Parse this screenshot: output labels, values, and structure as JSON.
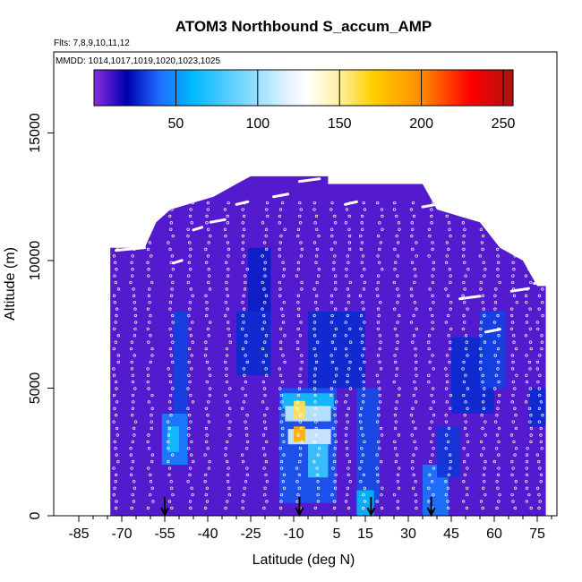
{
  "chart_data": {
    "type": "heatmap",
    "title": "ATOM3 Northbound S_accum_AMP",
    "subtitle_flights": "Flts: 7,8,9,10,11,12",
    "subtitle_dates": "MMDD: 1014,1017,1019,1020,1023,1025",
    "xlabel": "Latitude (deg N)",
    "ylabel": "Altitude (m)",
    "xlim": [
      -85,
      85
    ],
    "ylim": [
      0,
      17000
    ],
    "x_ticks": [
      -85,
      -70,
      -55,
      -40,
      -25,
      -10,
      5,
      15,
      30,
      45,
      60,
      75
    ],
    "x_tick_labels": [
      "-85",
      "-70",
      "-55",
      "-40",
      "-25",
      "-10",
      "5",
      "15",
      "30",
      "45",
      "60",
      "75"
    ],
    "y_ticks": [
      0,
      5000,
      10000,
      15000
    ],
    "y_tick_labels": [
      "0",
      "5000",
      "10000",
      "15000"
    ],
    "colorbar": {
      "range": [
        0,
        256
      ],
      "ticks": [
        50,
        100,
        150,
        200,
        250
      ],
      "tick_labels": [
        "50",
        "100",
        "150",
        "200",
        "250"
      ],
      "colors": [
        "#8a2be2",
        "#0000b0",
        "#1e6cff",
        "#00b8ff",
        "#e8f4ff",
        "#ffffff",
        "#fff0a0",
        "#ffd000",
        "#ff8c00",
        "#ff0000",
        "#b01010"
      ],
      "stops": [
        0,
        20,
        40,
        60,
        120,
        130,
        150,
        170,
        200,
        230,
        256
      ]
    },
    "background_value": 8,
    "domain_outline": [
      [
        -74,
        500
      ],
      [
        -74,
        10500
      ],
      [
        -62,
        10500
      ],
      [
        -58,
        11500
      ],
      [
        -53,
        12000
      ],
      [
        -38,
        12500
      ],
      [
        -30,
        13000
      ],
      [
        -25,
        13300
      ],
      [
        2,
        13300
      ],
      [
        2,
        13000
      ],
      [
        35,
        13000
      ],
      [
        40,
        12000
      ],
      [
        55,
        11500
      ],
      [
        62,
        10500
      ],
      [
        70,
        10000
      ],
      [
        75,
        9000
      ],
      [
        78,
        9000
      ],
      [
        78,
        500
      ]
    ],
    "features": [
      {
        "lat": [
          -56,
          -47
        ],
        "alt": [
          2000,
          4000
        ],
        "value": 45
      },
      {
        "lat": [
          -54,
          -50
        ],
        "alt": [
          2500,
          3500
        ],
        "value": 65
      },
      {
        "lat": [
          -52,
          -47
        ],
        "alt": [
          4000,
          8000
        ],
        "value": 32
      },
      {
        "lat": [
          -30,
          -18
        ],
        "alt": [
          5500,
          8000
        ],
        "value": 28
      },
      {
        "lat": [
          -26,
          -18
        ],
        "alt": [
          8000,
          10500
        ],
        "value": 26
      },
      {
        "lat": [
          -15,
          5
        ],
        "alt": [
          500,
          5000
        ],
        "value": 36
      },
      {
        "lat": [
          -14,
          4
        ],
        "alt": [
          4200,
          4800
        ],
        "value": 65
      },
      {
        "lat": [
          -13,
          3
        ],
        "alt": [
          3700,
          4300
        ],
        "value": 110
      },
      {
        "lat": [
          -12,
          3
        ],
        "alt": [
          2800,
          3400
        ],
        "value": 115
      },
      {
        "lat": [
          -10,
          -6
        ],
        "alt": [
          3800,
          4500
        ],
        "value": 160
      },
      {
        "lat": [
          -10,
          -6
        ],
        "alt": [
          2900,
          3500
        ],
        "value": 185
      },
      {
        "lat": [
          -5,
          2
        ],
        "alt": [
          1500,
          2800
        ],
        "value": 75
      },
      {
        "lat": [
          -5,
          15
        ],
        "alt": [
          5000,
          8000
        ],
        "value": 28
      },
      {
        "lat": [
          12,
          20
        ],
        "alt": [
          500,
          5000
        ],
        "value": 34
      },
      {
        "lat": [
          12,
          18
        ],
        "alt": [
          0,
          1000
        ],
        "value": 60
      },
      {
        "lat": [
          35,
          44
        ],
        "alt": [
          0,
          2000
        ],
        "value": 42
      },
      {
        "lat": [
          40,
          48
        ],
        "alt": [
          1500,
          3500
        ],
        "value": 30
      },
      {
        "lat": [
          45,
          60
        ],
        "alt": [
          4000,
          7000
        ],
        "value": 28
      },
      {
        "lat": [
          55,
          64
        ],
        "alt": [
          5000,
          8000
        ],
        "value": 32
      },
      {
        "lat": [
          72,
          78
        ],
        "alt": [
          3500,
          5000
        ],
        "value": 28
      }
    ],
    "profiles_lat": [
      -72,
      -66,
      -60,
      -53,
      -46,
      -40,
      -33,
      -27,
      -20,
      -14,
      -8,
      -2,
      4,
      9,
      14,
      20,
      26,
      32,
      38,
      44,
      50,
      56,
      61,
      67,
      72,
      76
    ],
    "high_legs": [
      {
        "lat": [
          -72,
          -62
        ],
        "alt": 10400
      },
      {
        "lat": [
          -52,
          -49
        ],
        "alt": 9900
      },
      {
        "lat": [
          -45,
          -42
        ],
        "alt": 11200
      },
      {
        "lat": [
          -39,
          -34
        ],
        "alt": 11500
      },
      {
        "lat": [
          -30,
          -26
        ],
        "alt": 12200
      },
      {
        "lat": [
          -17,
          -12
        ],
        "alt": 12500
      },
      {
        "lat": [
          -8,
          -1
        ],
        "alt": 13100
      },
      {
        "lat": [
          8,
          12
        ],
        "alt": 12200
      },
      {
        "lat": [
          35,
          40
        ],
        "alt": 12100
      },
      {
        "lat": [
          48,
          55
        ],
        "alt": 8500
      },
      {
        "lat": [
          57,
          62
        ],
        "alt": 7200
      },
      {
        "lat": [
          66,
          72
        ],
        "alt": 8800
      },
      {
        "lat": [
          74,
          78
        ],
        "alt": 9100
      }
    ],
    "arrows_lat": [
      -55,
      -8,
      17,
      38
    ]
  }
}
